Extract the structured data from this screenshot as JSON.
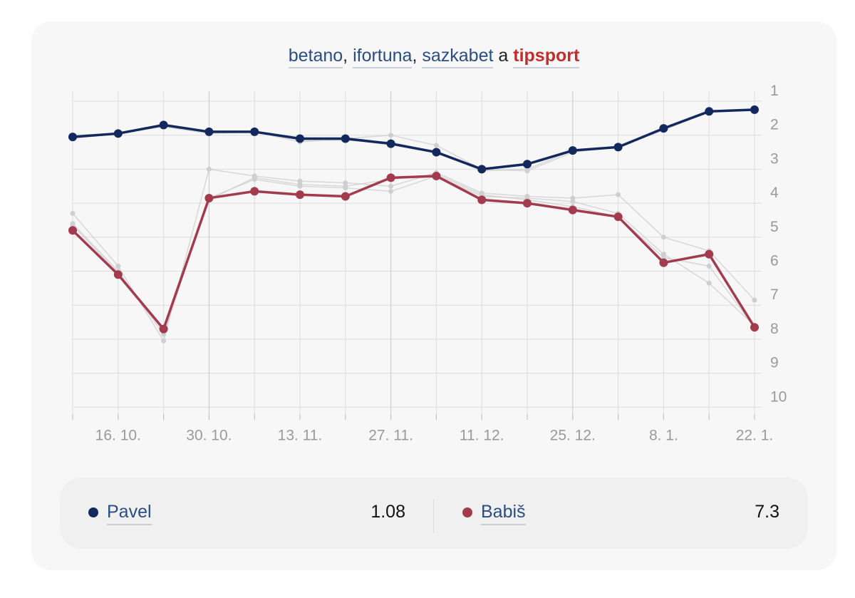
{
  "sources": {
    "items": [
      {
        "label": "betano",
        "active": false
      },
      {
        "label": "ifortuna",
        "active": false
      },
      {
        "label": "sazkabet",
        "active": false
      },
      {
        "label": "tipsport",
        "active": true
      }
    ],
    "conjunction": "a"
  },
  "colors": {
    "pavel": "#13285c",
    "babis": "#a23b4e",
    "ghost": "#cfcfcf",
    "grid": "#dddddd",
    "axis_text": "#9a9a9a"
  },
  "chart_data": {
    "type": "line",
    "y_axis": {
      "position": "right",
      "inverted": true,
      "ylim": [
        1,
        10
      ],
      "ticks": [
        1,
        2,
        3,
        4,
        5,
        6,
        7,
        8,
        9,
        10
      ]
    },
    "x_tick_labels": [
      "16. 10.",
      "30. 10.",
      "13. 11.",
      "27. 11.",
      "11. 12.",
      "25. 12.",
      "8. 1.",
      "22. 1."
    ],
    "x_tick_label_positions": [
      1,
      3,
      5,
      7,
      9,
      11,
      13,
      15
    ],
    "point_count": 16,
    "grid": true,
    "series": [
      {
        "name": "Pavel",
        "color_key": "pavel",
        "values": [
          2.05,
          1.95,
          1.7,
          1.9,
          1.9,
          2.1,
          2.1,
          2.25,
          2.5,
          3.0,
          2.85,
          2.45,
          2.35,
          1.8,
          1.3,
          1.25
        ]
      },
      {
        "name": "Babiš",
        "color_key": "babis",
        "values": [
          4.8,
          6.1,
          7.7,
          3.85,
          3.65,
          3.75,
          3.8,
          3.25,
          3.2,
          3.9,
          4.0,
          4.2,
          4.4,
          5.75,
          5.5,
          7.65
        ]
      }
    ],
    "other_bookmakers": [
      [
        2.0,
        1.95,
        1.7,
        1.9,
        1.9,
        2.2,
        2.1,
        2.0,
        2.3,
        3.0,
        3.05,
        2.5,
        2.35,
        1.8,
        1.3,
        1.25
      ],
      [
        2.1,
        1.95,
        1.75,
        1.95,
        1.9,
        2.15,
        2.15,
        2.2,
        2.5,
        3.05,
        3.0,
        2.45,
        2.35,
        1.85,
        1.3,
        1.25
      ],
      [
        4.3,
        5.85,
        8.05,
        3.0,
        3.2,
        3.35,
        3.4,
        3.5,
        3.1,
        3.7,
        3.8,
        3.85,
        3.75,
        5.0,
        5.4,
        6.85
      ],
      [
        4.6,
        6.0,
        7.85,
        3.85,
        3.3,
        3.5,
        3.55,
        3.65,
        3.2,
        3.8,
        3.85,
        3.95,
        4.3,
        5.5,
        6.35,
        7.6
      ],
      [
        4.65,
        6.05,
        7.7,
        3.9,
        3.25,
        3.45,
        3.5,
        3.3,
        3.15,
        3.75,
        3.9,
        4.1,
        4.4,
        5.6,
        5.85,
        7.65
      ]
    ]
  },
  "legend": {
    "items": [
      {
        "name": "Pavel",
        "value": "1.08",
        "color_key": "pavel"
      },
      {
        "name": "Babiš",
        "value": "7.3",
        "color_key": "babis"
      }
    ]
  }
}
